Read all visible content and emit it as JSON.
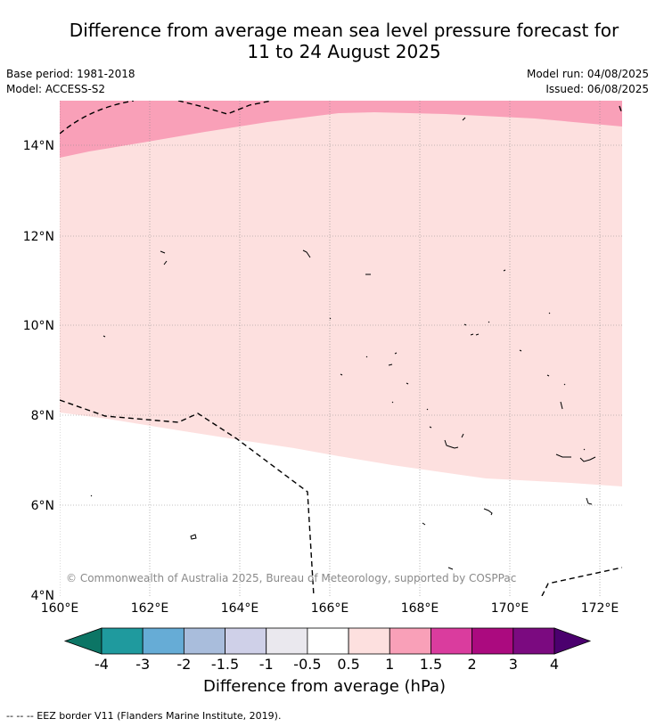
{
  "title": {
    "line1": "Difference from average mean sea level pressure forecast for",
    "line2": "11 to 24 August 2025"
  },
  "info": {
    "base_period": "Base period: 1981-2018",
    "model": "Model: ACCESS-S2",
    "model_run": "Model run: 04/08/2025",
    "issued": "Issued: 06/08/2025"
  },
  "map": {
    "lon_labels": [
      "160°E",
      "162°E",
      "164°E",
      "166°E",
      "168°E",
      "170°E",
      "172°E"
    ],
    "lat_labels": [
      "14°N",
      "12°N",
      "10°N",
      "8°N",
      "6°N",
      "4°N"
    ],
    "lon_range": [
      160,
      172.5
    ],
    "lat_range": [
      3.9,
      15
    ],
    "copyright": "© Commonwealth of Australia 2025, Bureau of Meteorology, supported by COSPPac",
    "colors": {
      "band_0.5_1": "#fde0df",
      "band_1_1.5": "#f9a0b8",
      "background": "#ffffff",
      "grid": "#888888"
    }
  },
  "colorbar": {
    "ticks": [
      "-4",
      "-3",
      "-2",
      "-1.5",
      "-1",
      "-0.5",
      "0.5",
      "1",
      "1.5",
      "2",
      "3",
      "4"
    ],
    "colors": [
      "#1f9a9e",
      "#66acd6",
      "#a9bddc",
      "#cfd0e8",
      "#eae8ee",
      "#ffffff",
      "#fde0df",
      "#f9a0b8",
      "#da3c9e",
      "#ab0a7f",
      "#7b0a80"
    ],
    "low_extend_color": "#0c7565",
    "high_extend_color": "#4b006e",
    "label": "Difference from average (hPa)"
  },
  "legend_footer": "--  --  -- EEZ border V11 (Flanders Marine Institute, 2019)."
}
